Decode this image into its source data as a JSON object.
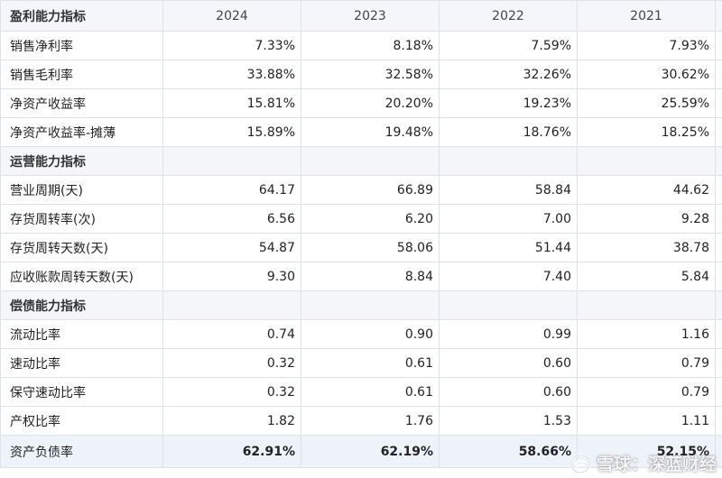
{
  "header": {
    "title": "盈利能力指标",
    "years": [
      "2024",
      "2023",
      "2022",
      "2021"
    ]
  },
  "rows": [
    {
      "label": "销售净利率",
      "values": [
        "7.33%",
        "8.18%",
        "7.59%",
        "7.93%"
      ]
    },
    {
      "label": "销售毛利率",
      "values": [
        "33.88%",
        "32.58%",
        "32.26%",
        "30.62%"
      ]
    },
    {
      "label": "净资产收益率",
      "values": [
        "15.81%",
        "20.20%",
        "19.23%",
        "25.59%"
      ]
    },
    {
      "label": "净资产收益率-摊薄",
      "values": [
        "15.89%",
        "19.48%",
        "18.76%",
        "18.25%"
      ]
    },
    {
      "section": "运营能力指标"
    },
    {
      "label": "营业周期(天)",
      "values": [
        "64.17",
        "66.89",
        "58.84",
        "44.62"
      ]
    },
    {
      "label": "存货周转率(次)",
      "values": [
        "6.56",
        "6.20",
        "7.00",
        "9.28"
      ]
    },
    {
      "label": "存货周转天数(天)",
      "values": [
        "54.87",
        "58.06",
        "51.44",
        "38.78"
      ]
    },
    {
      "label": "应收账款周转天数(天)",
      "values": [
        "9.30",
        "8.84",
        "7.40",
        "5.84"
      ]
    },
    {
      "section": "偿债能力指标"
    },
    {
      "label": "流动比率",
      "values": [
        "0.74",
        "0.90",
        "0.99",
        "1.16"
      ]
    },
    {
      "label": "速动比率",
      "values": [
        "0.32",
        "0.61",
        "0.60",
        "0.79"
      ]
    },
    {
      "label": "保守速动比率",
      "values": [
        "0.32",
        "0.61",
        "0.60",
        "0.79"
      ]
    },
    {
      "label": "产权比率",
      "values": [
        "1.82",
        "1.76",
        "1.53",
        "1.11"
      ]
    },
    {
      "label": "资产负债率",
      "values": [
        "62.91%",
        "62.19%",
        "58.66%",
        "52.15%"
      ]
    }
  ],
  "watermark": {
    "text": "雪球：深蓝财经",
    "icon": "snowball-logo-icon"
  },
  "colors": {
    "header_bg": "#f4f6f9",
    "grid_line": "#dde3ea",
    "last_row_bg": "#eef3fa"
  }
}
